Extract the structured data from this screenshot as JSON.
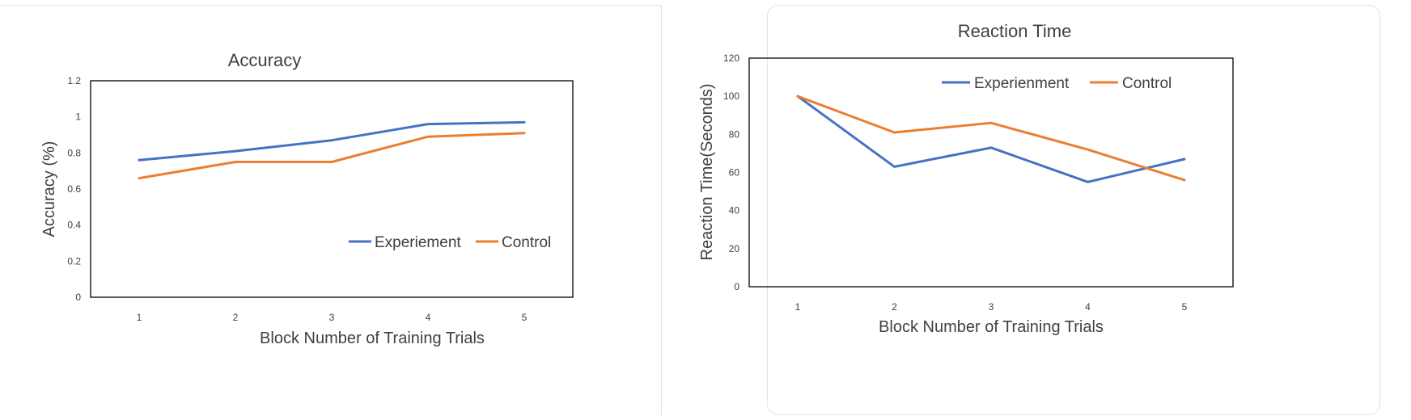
{
  "colors": {
    "experiment": "#4472c4",
    "control": "#ed7d31"
  },
  "chart_data": [
    {
      "type": "line",
      "title": "Accuracy",
      "xlabel": "Block Number of Training Trials",
      "ylabel": "Accuracy (%)",
      "ylim": [
        0,
        1.2
      ],
      "yticks": [
        "0",
        "0.2",
        "0.4",
        "0.6",
        "0.8",
        "1",
        "1.2"
      ],
      "categories": [
        "1",
        "2",
        "3",
        "4",
        "5"
      ],
      "grid": false,
      "legend_position": "bottom-right",
      "series": [
        {
          "name": "Experiement",
          "values": [
            0.76,
            0.81,
            0.87,
            0.96,
            0.97
          ]
        },
        {
          "name": "Control",
          "values": [
            0.66,
            0.75,
            0.75,
            0.89,
            0.91
          ]
        }
      ]
    },
    {
      "type": "line",
      "title": "Reaction Time",
      "xlabel": "Block Number of Training Trials",
      "ylabel": "Reaction Time(Seconds)",
      "ylim": [
        0,
        120
      ],
      "yticks": [
        "0",
        "20",
        "40",
        "60",
        "80",
        "100",
        "120"
      ],
      "categories": [
        "1",
        "2",
        "3",
        "4",
        "5"
      ],
      "grid": false,
      "legend_position": "top-right",
      "series": [
        {
          "name": "Experienment",
          "values": [
            100,
            63,
            73,
            55,
            67
          ]
        },
        {
          "name": "Control",
          "values": [
            100,
            81,
            86,
            72,
            56
          ]
        }
      ]
    }
  ]
}
